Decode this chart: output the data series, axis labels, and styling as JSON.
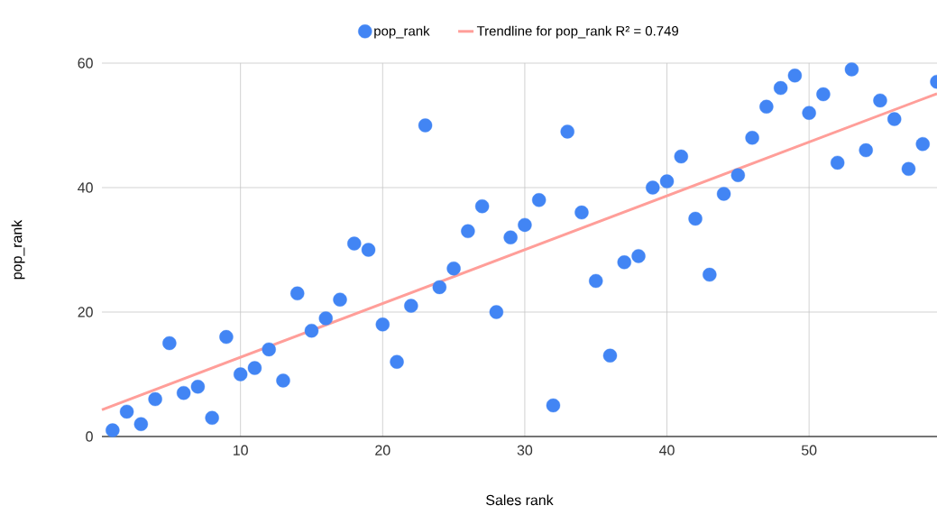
{
  "chart_data": {
    "type": "scatter",
    "xlabel": "Sales rank",
    "ylabel": "pop_rank",
    "x": [
      1,
      2,
      3,
      4,
      5,
      6,
      7,
      8,
      9,
      10,
      11,
      12,
      13,
      14,
      15,
      16,
      17,
      18,
      19,
      20,
      21,
      22,
      23,
      24,
      25,
      26,
      27,
      28,
      29,
      30,
      31,
      32,
      33,
      34,
      35,
      36,
      37,
      38,
      39,
      40,
      41,
      42,
      43,
      44,
      45,
      46,
      47,
      48,
      49,
      50,
      51,
      52,
      53,
      54,
      55,
      56,
      57,
      58,
      59
    ],
    "series": [
      {
        "name": "pop_rank",
        "marker": "circle",
        "color": "#4285f4",
        "values": [
          1,
          4,
          2,
          6,
          15,
          7,
          8,
          3,
          16,
          10,
          11,
          14,
          9,
          23,
          17,
          19,
          22,
          31,
          30,
          18,
          12,
          21,
          50,
          24,
          27,
          33,
          37,
          20,
          32,
          34,
          38,
          5,
          49,
          36,
          25,
          13,
          28,
          29,
          40,
          41,
          45,
          35,
          26,
          39,
          42,
          48,
          53,
          56,
          58,
          52,
          55,
          44,
          59,
          46,
          54,
          51,
          43,
          47,
          57
        ]
      },
      {
        "name": "Trendline for pop_rank R² = 0.749",
        "type": "line",
        "marker": "none",
        "color": "#ff9e99",
        "x": [
          0.25,
          59
        ],
        "values": [
          4.3,
          55.1
        ]
      }
    ],
    "xlim": [
      0.25,
      59
    ],
    "ylim": [
      0,
      60
    ],
    "xticks": [
      10,
      20,
      30,
      40,
      50
    ],
    "yticks": [
      0,
      20,
      40,
      60
    ],
    "grid": true,
    "legend": "top"
  }
}
